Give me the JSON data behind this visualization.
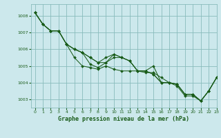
{
  "title": "Graphe pression niveau de la mer (hPa)",
  "bg_color": "#cce8ec",
  "grid_color": "#88bbbb",
  "line_color": "#1a5c1a",
  "xlim": [
    -0.5,
    23
  ],
  "ylim": [
    1002.5,
    1008.7
  ],
  "yticks": [
    1003,
    1004,
    1005,
    1006,
    1007,
    1008
  ],
  "xticks": [
    0,
    1,
    2,
    3,
    4,
    5,
    6,
    7,
    8,
    9,
    10,
    11,
    12,
    13,
    14,
    15,
    16,
    17,
    18,
    19,
    20,
    21,
    22,
    23
  ],
  "series": [
    [
      1008.2,
      1007.5,
      1007.1,
      1007.1,
      1006.3,
      1005.5,
      1005.0,
      1004.9,
      1004.8,
      1005.0,
      1004.8,
      1004.7,
      1004.7,
      1004.7,
      1004.6,
      1004.6,
      1004.3,
      1004.0,
      1003.8,
      1003.2,
      1003.2,
      1002.9,
      1003.5,
      1004.3
    ],
    [
      1008.2,
      1007.5,
      1007.1,
      1007.1,
      1006.3,
      1006.0,
      1005.8,
      1005.1,
      1004.9,
      1005.2,
      1005.5,
      1005.5,
      1005.3,
      1004.7,
      1004.7,
      1005.0,
      1004.0,
      1004.0,
      1003.9,
      1003.3,
      1003.3,
      1002.9,
      1003.5,
      1004.3
    ],
    [
      1008.2,
      1007.5,
      1007.1,
      1007.1,
      1006.3,
      1006.0,
      1005.8,
      1005.5,
      1005.2,
      1005.2,
      1005.7,
      1005.5,
      1005.3,
      1004.7,
      1004.7,
      1004.5,
      1004.0,
      1004.0,
      1003.9,
      1003.3,
      1003.3,
      1002.9,
      1003.5,
      1004.3
    ],
    [
      1008.2,
      1007.5,
      1007.1,
      1007.1,
      1006.3,
      1006.0,
      1005.8,
      1005.5,
      1005.2,
      1005.5,
      1005.7,
      1005.5,
      1005.3,
      1004.7,
      1004.7,
      1004.5,
      1004.0,
      1004.0,
      1003.9,
      1003.3,
      1003.3,
      1002.9,
      1003.5,
      1004.3
    ]
  ]
}
